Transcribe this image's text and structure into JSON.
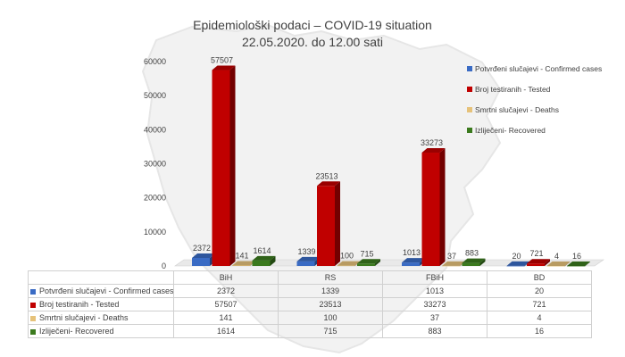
{
  "chart_data": {
    "type": "bar",
    "title": "Epidemiološki podaci – COVID-19 situation",
    "subtitle": "22.05.2020. do 12.00 sati",
    "categories": [
      "BiH",
      "RS",
      "FBiH",
      "BD"
    ],
    "series": [
      {
        "name": "Potvrđeni slučajevi - Confirmed cases",
        "color": "#3a6bc4",
        "values": [
          2372,
          1339,
          1013,
          20
        ]
      },
      {
        "name": "Broj testiranih - Tested",
        "color": "#c00000",
        "values": [
          57507,
          23513,
          33273,
          721
        ]
      },
      {
        "name": "Smrtni slučajevi - Deaths",
        "color": "#e6c27a",
        "values": [
          141,
          100,
          37,
          4
        ]
      },
      {
        "name": "Izliječeni- Recovered",
        "color": "#3b7a1e",
        "values": [
          1614,
          715,
          883,
          16
        ]
      }
    ],
    "data_labels": [
      [
        "2372",
        "1339",
        "1013",
        "20"
      ],
      [
        "57507",
        "23513",
        "33273",
        "721"
      ],
      [
        "141",
        "100",
        "37",
        "4"
      ],
      [
        "1614",
        "715",
        "883",
        "16"
      ]
    ],
    "yticks": [
      "0",
      "10000",
      "20000",
      "30000",
      "40000",
      "50000",
      "60000"
    ],
    "ylim": [
      0,
      60000
    ],
    "legend_position": "right",
    "grid": false,
    "style": "3d-column-with-data-table"
  }
}
